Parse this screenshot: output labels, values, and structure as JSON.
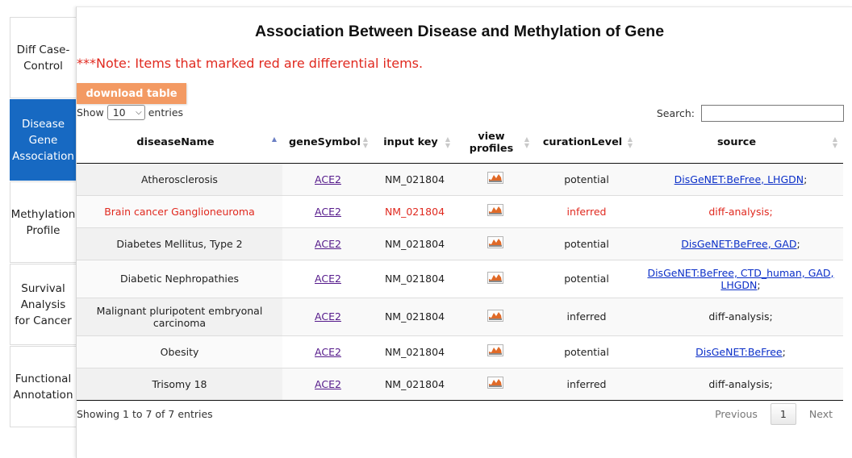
{
  "sidebar": {
    "items": [
      {
        "label": "Diff Case-Control",
        "active": false
      },
      {
        "label": "Disease Gene Association",
        "active": true
      },
      {
        "label": "Methylation Profile",
        "active": false
      },
      {
        "label": "Survival Analysis for Cancer",
        "active": false
      },
      {
        "label": "Functional Annotation",
        "active": false
      }
    ]
  },
  "main": {
    "title": "Association Between Disease and Methylation of Gene",
    "note": "***Note: Items that marked red are differential items.",
    "download_label": "download table"
  },
  "controls": {
    "show_label": "Show",
    "entries_value": "10",
    "entries_label": "entries",
    "search_label": "Search:",
    "search_value": ""
  },
  "table": {
    "columns": [
      {
        "label": "diseaseName",
        "sorted": "asc"
      },
      {
        "label": "geneSymbol"
      },
      {
        "label": "input key"
      },
      {
        "label": "view profiles"
      },
      {
        "label": "curationLevel"
      },
      {
        "label": "source"
      }
    ],
    "rows": [
      {
        "disease": "Atherosclerosis",
        "gene": "ACE2",
        "input_key": "NM_021804",
        "curation": "potential",
        "source": "DisGeNET:BeFree, LHGDN",
        "source_link": true,
        "differential": false
      },
      {
        "disease": "Brain cancer Ganglioneuroma",
        "gene": "ACE2",
        "input_key": "NM_021804",
        "curation": "inferred",
        "source": "diff-analysis",
        "source_link": false,
        "differential": true
      },
      {
        "disease": "Diabetes Mellitus, Type 2",
        "gene": "ACE2",
        "input_key": "NM_021804",
        "curation": "potential",
        "source": "DisGeNET:BeFree, GAD",
        "source_link": true,
        "differential": false
      },
      {
        "disease": "Diabetic Nephropathies",
        "gene": "ACE2",
        "input_key": "NM_021804",
        "curation": "potential",
        "source": "DisGeNET:BeFree, CTD_human, GAD, LHGDN",
        "source_link": true,
        "differential": false
      },
      {
        "disease": "Malignant pluripotent embryonal carcinoma",
        "gene": "ACE2",
        "input_key": "NM_021804",
        "curation": "inferred",
        "source": "diff-analysis",
        "source_link": false,
        "differential": false
      },
      {
        "disease": "Obesity",
        "gene": "ACE2",
        "input_key": "NM_021804",
        "curation": "potential",
        "source": "DisGeNET:BeFree",
        "source_link": true,
        "differential": false
      },
      {
        "disease": "Trisomy 18",
        "gene": "ACE2",
        "input_key": "NM_021804",
        "curation": "inferred",
        "source": "diff-analysis",
        "source_link": false,
        "differential": false
      }
    ]
  },
  "footer": {
    "info": "Showing 1 to 7 of 7 entries",
    "previous": "Previous",
    "page": "1",
    "next": "Next"
  },
  "colors": {
    "active_nav": "#1769c2",
    "note_red": "#e0291f",
    "download_button": "#f39a63",
    "link": "#0b2fc8"
  }
}
